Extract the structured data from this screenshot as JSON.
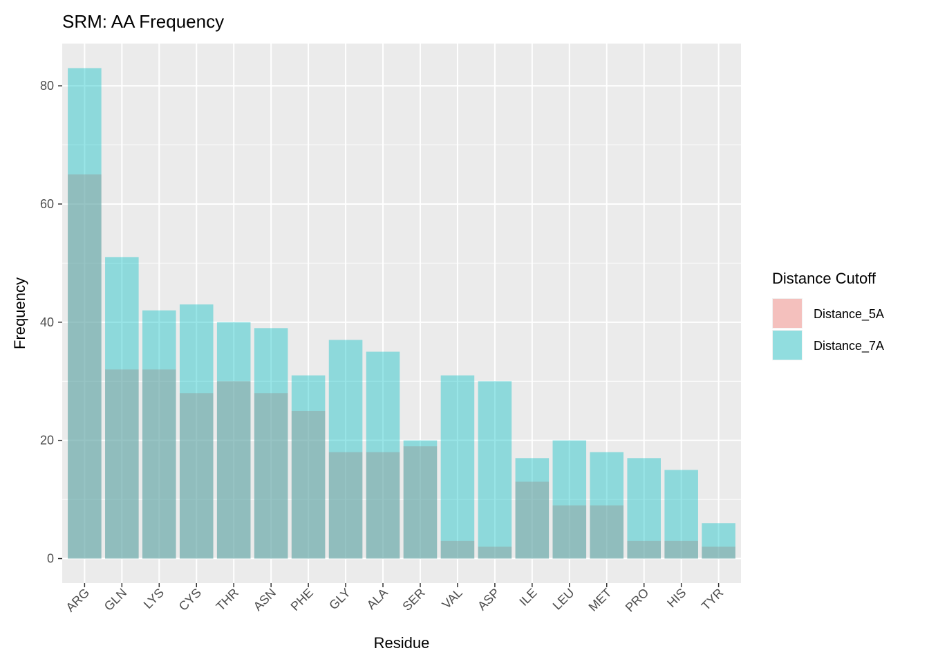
{
  "chart_data": {
    "type": "bar",
    "title": "SRM: AA Frequency",
    "xlabel": "Residue",
    "ylabel": "Frequency",
    "ylim": [
      -4.15,
      87.15
    ],
    "yticks": [
      0,
      20,
      40,
      60,
      80
    ],
    "grid": true,
    "bar_mode": "overlay",
    "categories": [
      "ARG",
      "GLN",
      "LYS",
      "CYS",
      "THR",
      "ASN",
      "PHE",
      "GLY",
      "ALA",
      "SER",
      "VAL",
      "ASP",
      "ILE",
      "LEU",
      "MET",
      "PRO",
      "HIS",
      "TYR"
    ],
    "series": [
      {
        "name": "Distance_5A",
        "color": "#F8766D",
        "values": [
          65,
          32,
          32,
          28,
          30,
          28,
          25,
          18,
          18,
          19,
          3,
          2,
          13,
          9,
          9,
          3,
          3,
          2
        ]
      },
      {
        "name": "Distance_7A",
        "color": "#00BFC4",
        "values": [
          83,
          51,
          42,
          43,
          40,
          39,
          31,
          37,
          35,
          20,
          31,
          30,
          17,
          20,
          18,
          17,
          15,
          6
        ]
      }
    ],
    "legend": {
      "title": "Distance Cutoff",
      "position": "right"
    },
    "panel_background": "#EBEBEB",
    "fill_alpha": 0.4
  }
}
